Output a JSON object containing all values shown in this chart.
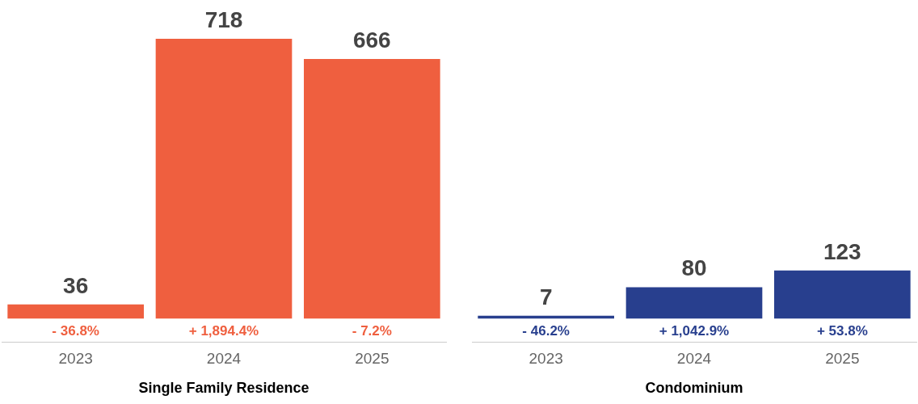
{
  "chart_data": [
    {
      "type": "bar",
      "xlabel": "Single Family Residence",
      "categories": [
        "2023",
        "2024",
        "2025"
      ],
      "values": [
        36,
        718,
        666
      ],
      "color": "#ef5f3f",
      "data_labels": true,
      "grid": false,
      "legend": false,
      "annotations": [
        "- 36.8%",
        "+ 1,894.4%",
        "- 7.2%"
      ]
    },
    {
      "type": "bar",
      "xlabel": "Condominium",
      "categories": [
        "2023",
        "2024",
        "2025"
      ],
      "values": [
        7,
        80,
        123
      ],
      "color": "#283f8e",
      "data_labels": true,
      "grid": false,
      "legend": false,
      "annotations": [
        "- 46.2%",
        "+ 1,042.9%",
        "+ 53.8%"
      ]
    }
  ]
}
